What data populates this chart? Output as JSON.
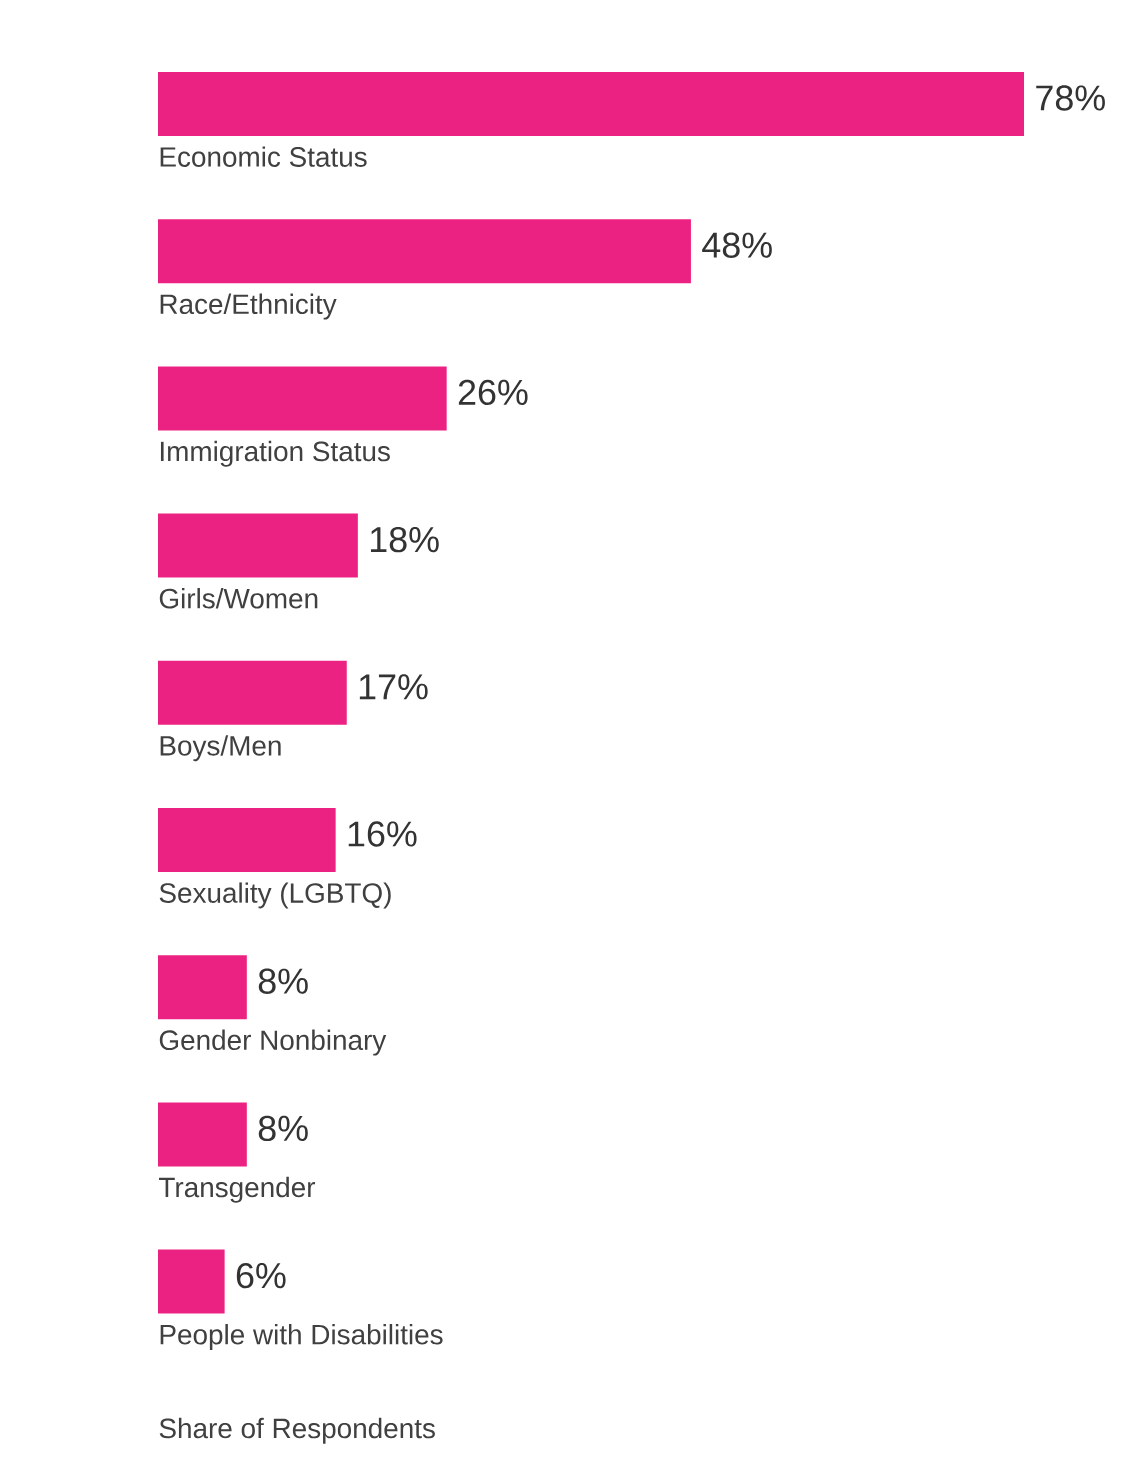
{
  "chart_data": {
    "type": "bar",
    "orientation": "horizontal",
    "xlabel": "Share of Respondents",
    "color": "#ec2282",
    "categories": [
      "Economic Status",
      "Race/Ethnicity",
      "Immigration Status",
      "Girls/Women",
      "Boys/Men",
      "Sexuality (LGBTQ)",
      "Gender Nonbinary",
      "Transgender",
      "People with Disabilities"
    ],
    "values": [
      78,
      48,
      26,
      18,
      17,
      16,
      8,
      8,
      6
    ],
    "value_labels": [
      "78%",
      "48%",
      "26%",
      "18%",
      "17%",
      "16%",
      "8%",
      "8%",
      "6%"
    ]
  }
}
